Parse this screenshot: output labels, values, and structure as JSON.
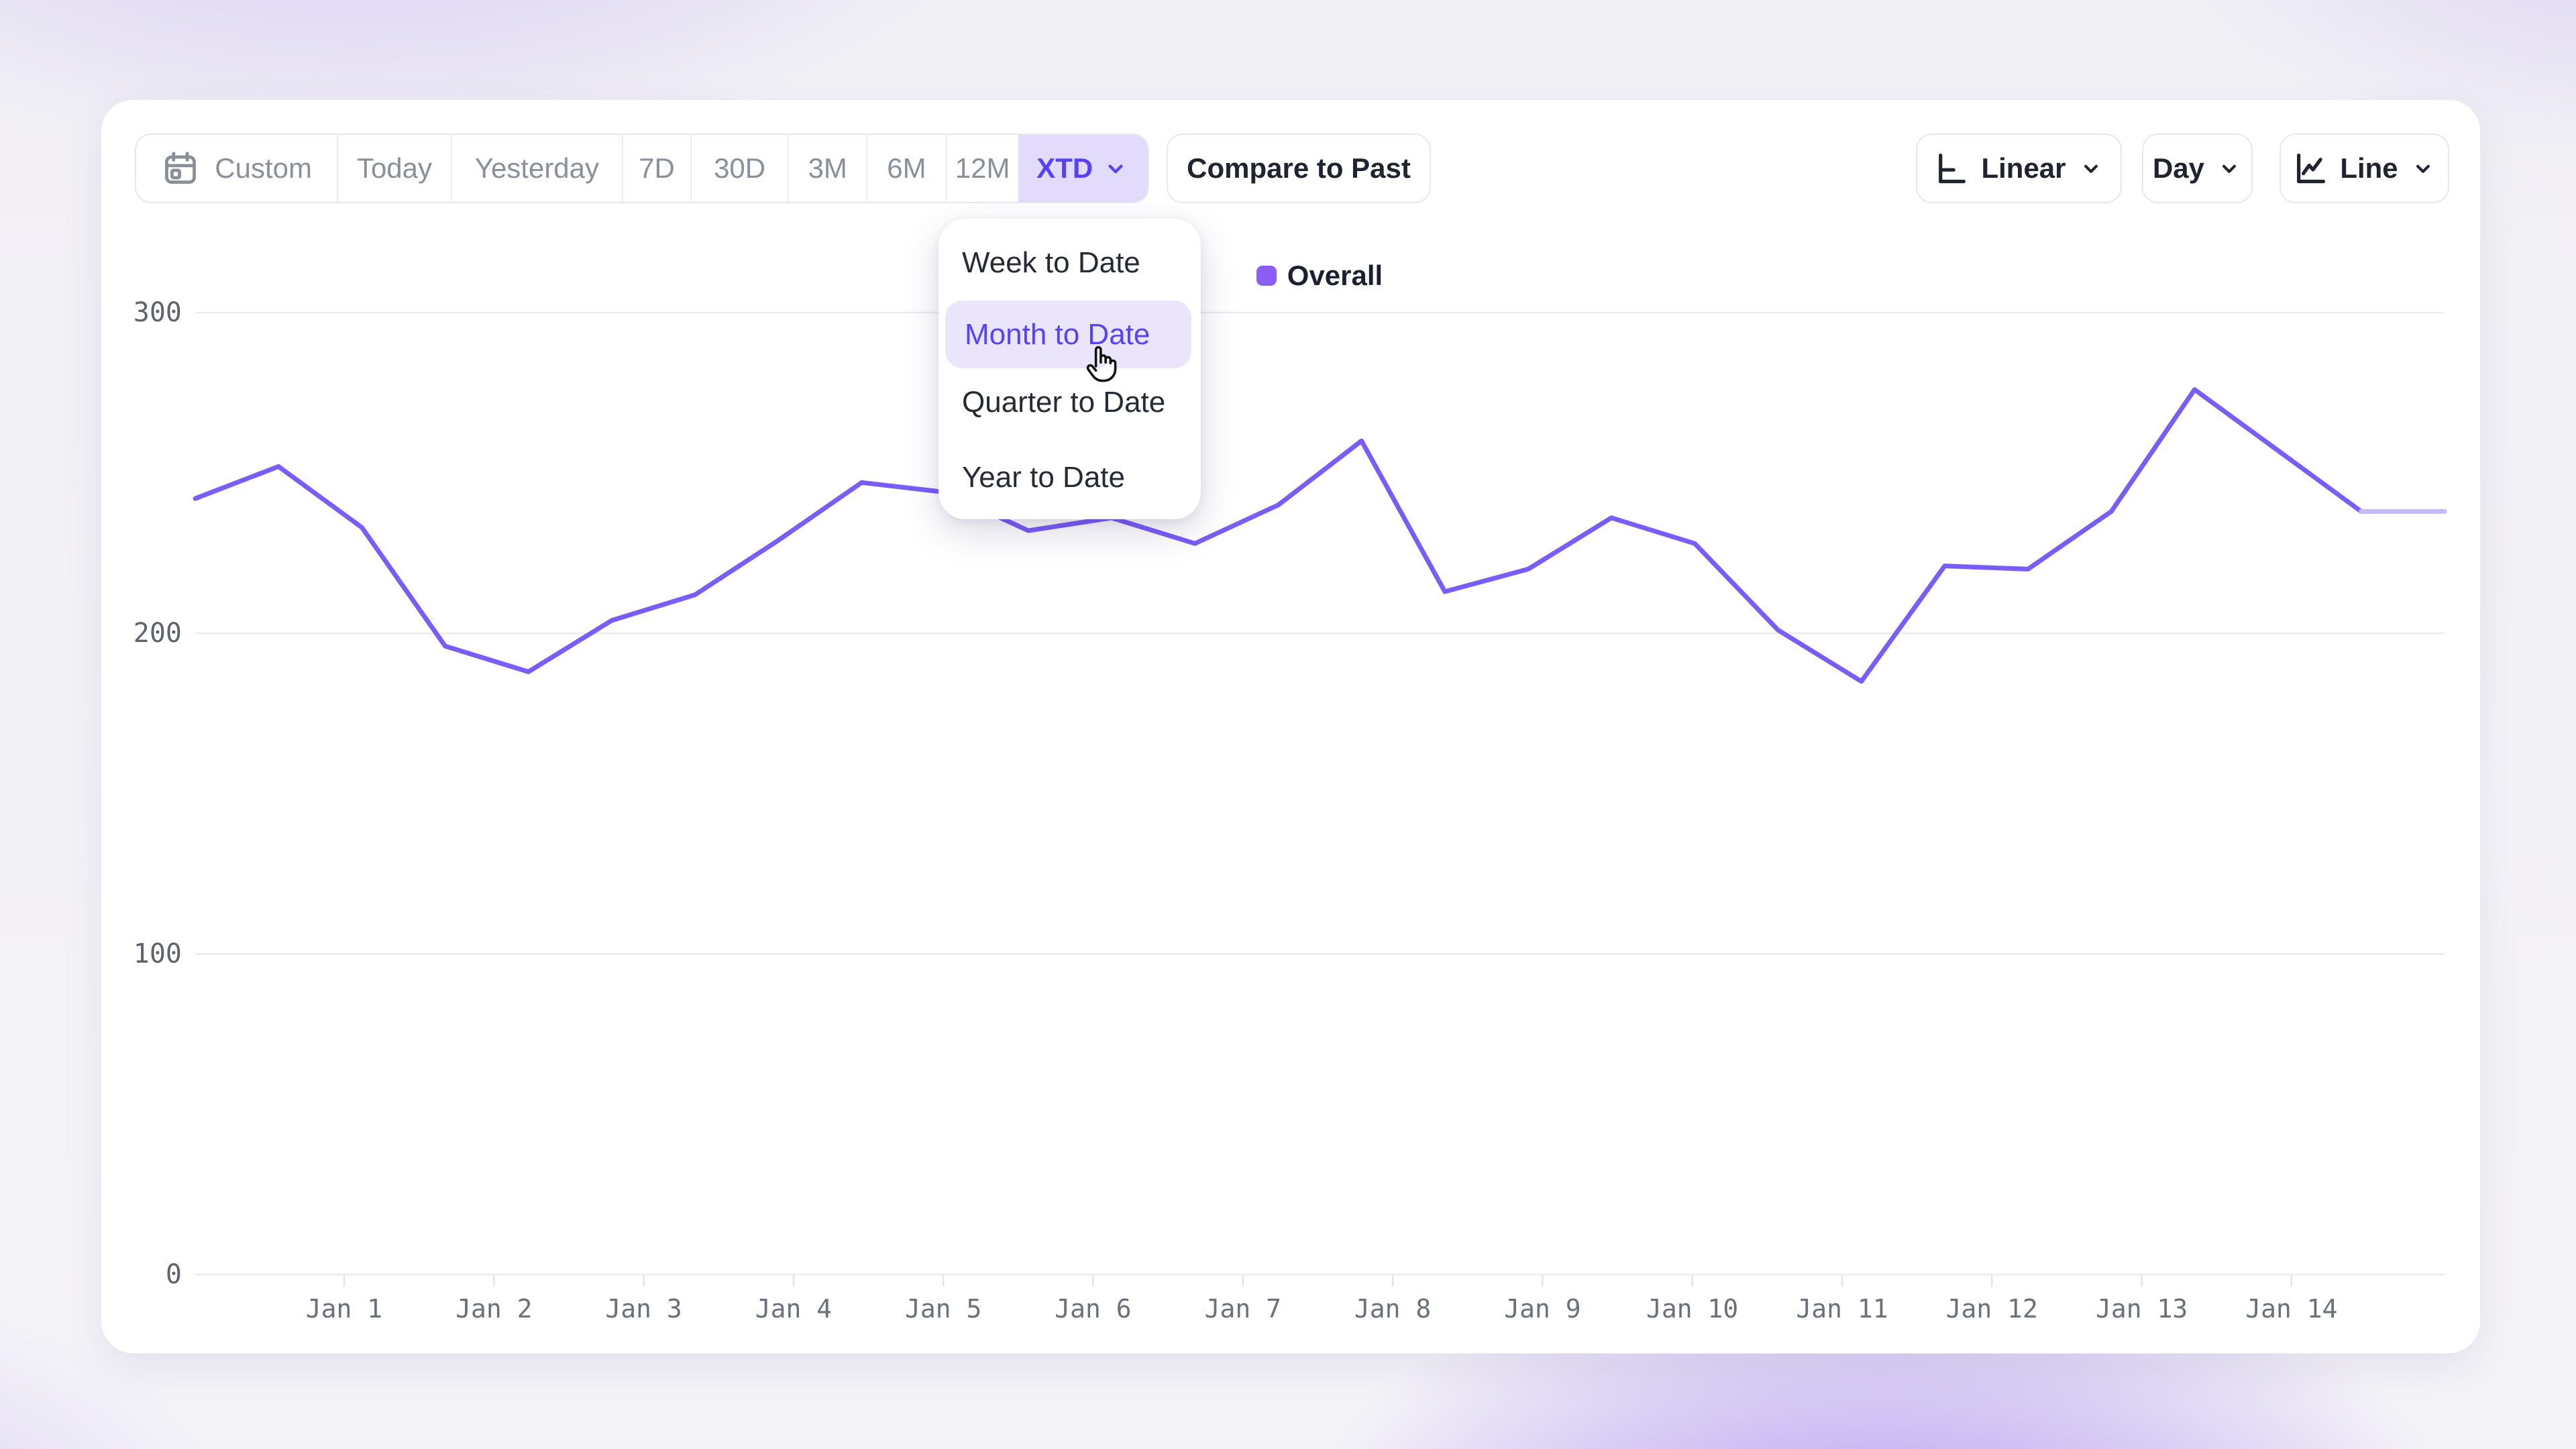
{
  "toolbar": {
    "ranges": [
      {
        "label": "Custom"
      },
      {
        "label": "Today"
      },
      {
        "label": "Yesterday"
      },
      {
        "label": "7D"
      },
      {
        "label": "30D"
      },
      {
        "label": "3M"
      },
      {
        "label": "6M"
      },
      {
        "label": "12M"
      },
      {
        "label": "XTD"
      }
    ],
    "selected_range": "XTD",
    "compare_label": "Compare to Past",
    "scale_label": "Linear",
    "granularity_label": "Day",
    "chart_type_label": "Line"
  },
  "menu": {
    "items": [
      {
        "label": "Week to Date",
        "selected": false
      },
      {
        "label": "Month to Date",
        "selected": true
      },
      {
        "label": "Quarter to Date",
        "selected": false
      },
      {
        "label": "Year to Date",
        "selected": false
      }
    ]
  },
  "legend": {
    "label": "Overall",
    "color": "#8b5cf6"
  },
  "chart_data": {
    "type": "line",
    "title": "",
    "xlabel": "",
    "ylabel": "",
    "series": [
      {
        "name": "Overall",
        "values": [
          242,
          252,
          233,
          196,
          188,
          204,
          212,
          229,
          247,
          244,
          232,
          236,
          228,
          240,
          260,
          213,
          220,
          236,
          228,
          201,
          185,
          221,
          220,
          238,
          276,
          257,
          238,
          238
        ]
      }
    ],
    "x_tick_labels": [
      "Jan 1",
      "Jan 2",
      "Jan 3",
      "Jan 4",
      "Jan 5",
      "Jan 6",
      "Jan 7",
      "Jan 8",
      "Jan 9",
      "Jan 10",
      "Jan 11",
      "Jan 12",
      "Jan 13",
      "Jan 14"
    ],
    "yticks": [
      0,
      100,
      200,
      300
    ],
    "ylim": [
      0,
      300
    ],
    "grid": "horizontal",
    "legend_position": "top-center",
    "line_color": "#7a5cf8",
    "tail_color": "#c5b8fb",
    "tail_points": 1,
    "gridline_color": "#ececf0",
    "tick_color": "#e4e4e9"
  },
  "colors": {
    "accent": "#5743f5",
    "accent_bg": "#e2dbfc",
    "hover_pill_bg": "#ebe5fc",
    "legend_swatch": "#8b5cf6"
  }
}
